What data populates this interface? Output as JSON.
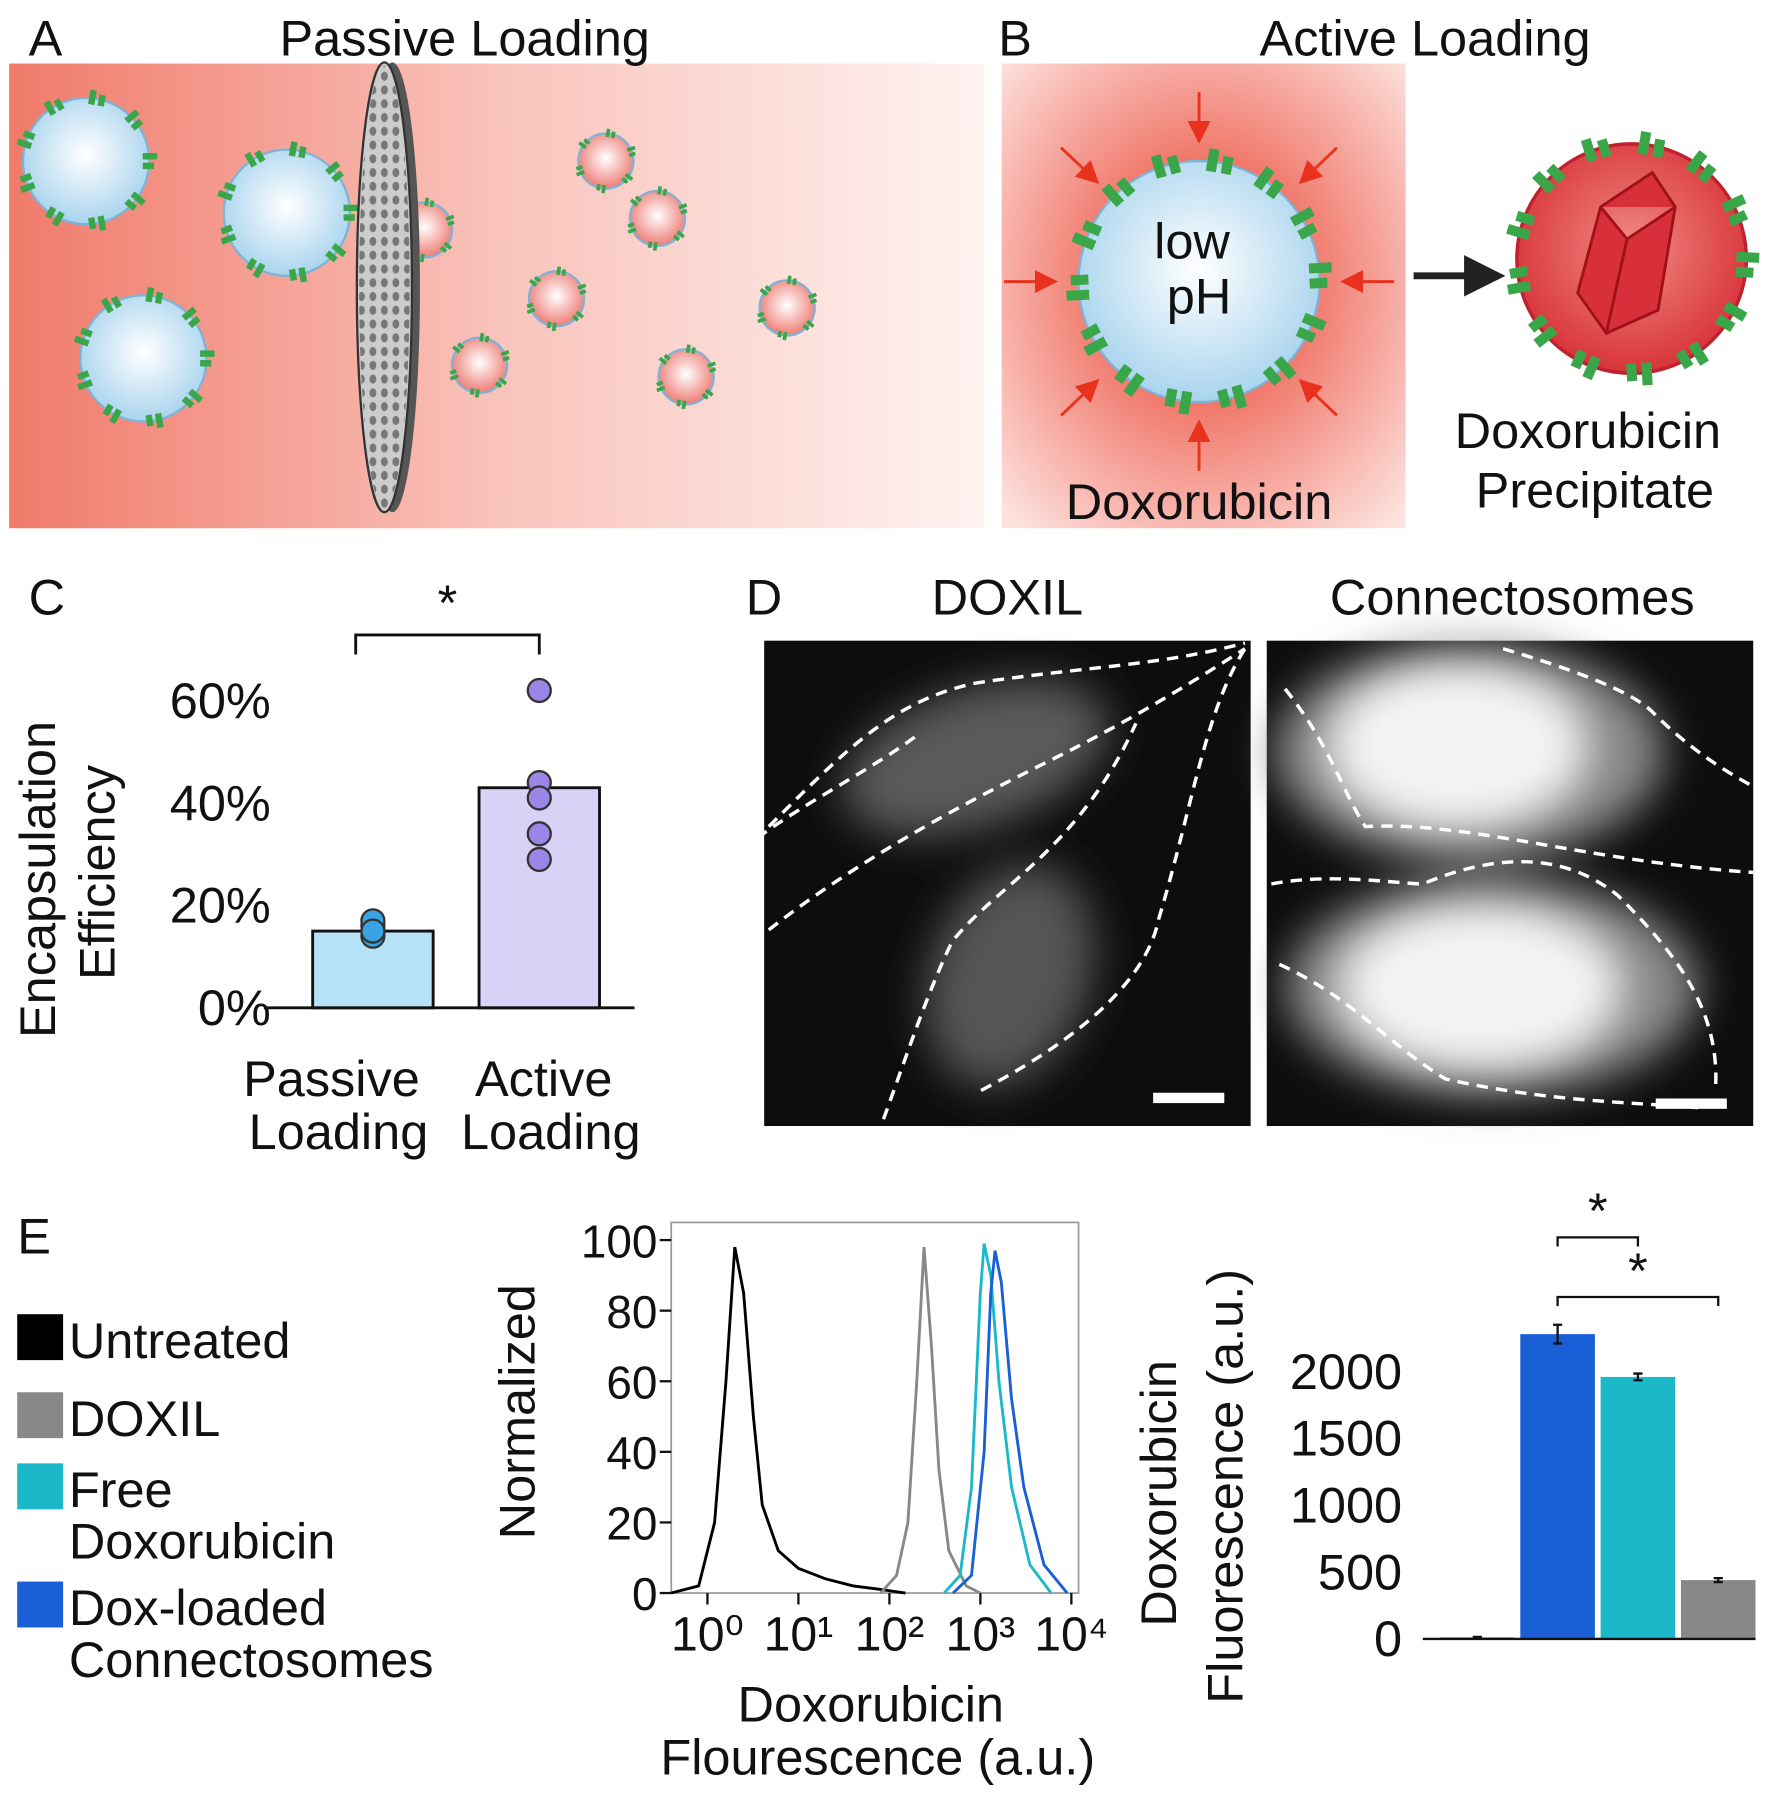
{
  "panel_labels": [
    "A",
    "B",
    "C",
    "D",
    "E"
  ],
  "panel_a": {
    "title": "Passive Loading"
  },
  "panel_b": {
    "title": "Active Loading",
    "inside_label": "low pH",
    "drug_label": "Doxorubicin",
    "product_label": "Doxorubicin Precipitate"
  },
  "panel_d": {
    "titles": [
      "DOXIL",
      "Connectosomes"
    ]
  },
  "chart_data": [
    {
      "type": "bar",
      "categories": [
        "Passive Loading",
        "Active Loading"
      ],
      "values": [
        15,
        43
      ],
      "points": [
        [
          14,
          15,
          16,
          17,
          15
        ],
        [
          62,
          44,
          41,
          34,
          29
        ]
      ],
      "colors": [
        "#b5e2f7",
        "#d9d2f7"
      ],
      "point_colors": [
        "#3aa3e3",
        "#9b86e8"
      ],
      "y_label": "Encapsulation Efficiency",
      "annotation": "*",
      "ylim": [
        0,
        65
      ],
      "yticks": [
        {
          "value": 0,
          "label": "0%"
        },
        {
          "value": 20,
          "label": "20%"
        },
        {
          "value": 40,
          "label": "40%"
        },
        {
          "value": 60,
          "label": "60%"
        }
      ]
    },
    {
      "type": "line",
      "xscale": "log",
      "x_label": "Doxorubicin Flourescence (a.u.)",
      "y_label": "Normalized",
      "xlim": [
        0.4,
        12000
      ],
      "ylim": [
        0,
        105
      ],
      "xticks": [
        {
          "value": 1,
          "label": "10⁰"
        },
        {
          "value": 10,
          "label": "10¹"
        },
        {
          "value": 100,
          "label": "10²"
        },
        {
          "value": 1000,
          "label": "10³"
        },
        {
          "value": 10000,
          "label": "10⁴"
        }
      ],
      "yticks": [
        0,
        20,
        40,
        60,
        80,
        100
      ],
      "series": [
        {
          "name": "Untreated",
          "color": "#000000",
          "x": [
            0.4,
            0.8,
            1.2,
            1.6,
            2,
            2.5,
            3.2,
            4,
            6,
            10,
            20,
            40,
            80,
            150
          ],
          "values": [
            0,
            2,
            20,
            60,
            98,
            85,
            50,
            25,
            12,
            7,
            4,
            2,
            1,
            0
          ]
        },
        {
          "name": "DOXIL",
          "color": "#888888",
          "x": [
            80,
            120,
            160,
            200,
            240,
            290,
            350,
            450,
            700,
            1000
          ],
          "values": [
            0,
            5,
            20,
            60,
            98,
            70,
            35,
            12,
            2,
            0
          ]
        },
        {
          "name": "Free Doxorubicin",
          "color": "#1ab8c8",
          "x": [
            400,
            600,
            800,
            1000,
            1100,
            1300,
            1600,
            2200,
            3500,
            6000
          ],
          "values": [
            0,
            5,
            30,
            85,
            99,
            90,
            60,
            30,
            8,
            0
          ]
        },
        {
          "name": "Dox-loaded Connectosomes",
          "color": "#1a5fd8",
          "x": [
            500,
            800,
            1100,
            1300,
            1450,
            1700,
            2200,
            3000,
            5000,
            9000
          ],
          "values": [
            0,
            5,
            40,
            85,
            97,
            88,
            55,
            30,
            8,
            0
          ]
        }
      ]
    },
    {
      "type": "bar",
      "values": [
        10,
        2280,
        1960,
        440
      ],
      "errors": [
        5,
        70,
        25,
        15
      ],
      "colors": [
        "#000000",
        "#1a5fd8",
        "#1ab8c8",
        "#888888"
      ],
      "y_label": "Doxorubicin Fluorescence (a.u.)",
      "annotations": [
        "*",
        "*"
      ],
      "ylim": [
        0,
        3150
      ],
      "yticks": [
        0,
        500,
        1000,
        1500,
        2000
      ]
    }
  ]
}
